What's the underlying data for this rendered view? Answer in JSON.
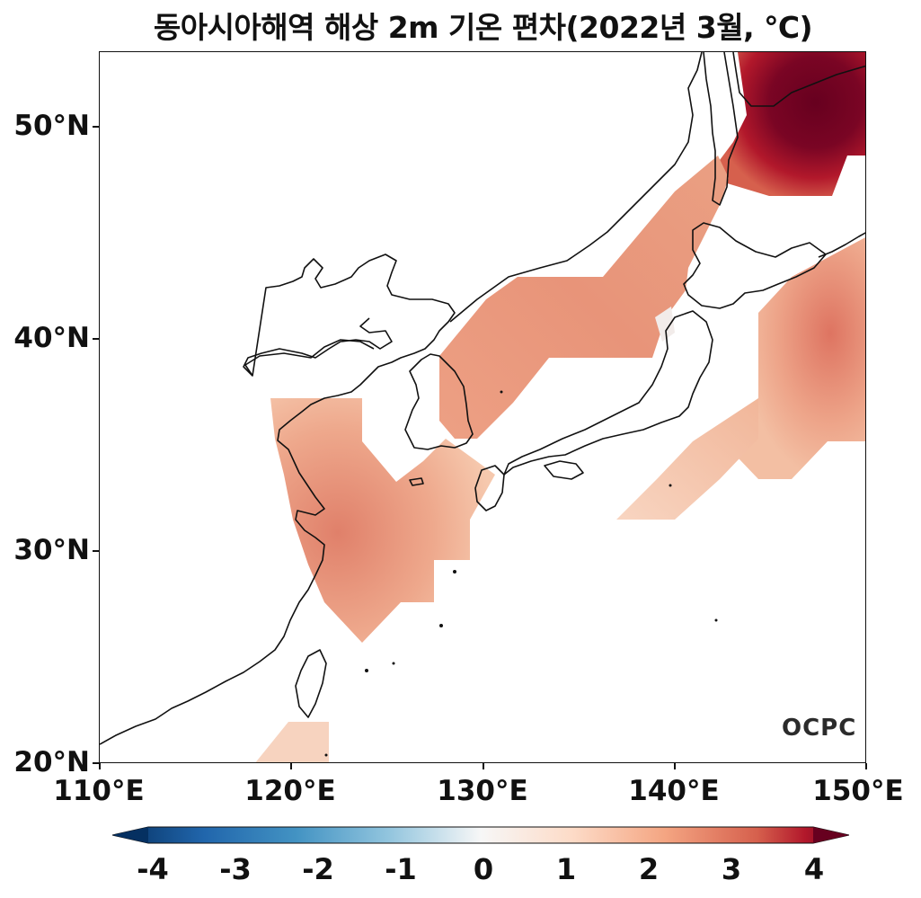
{
  "title": "동아시아해역 해상 2m 기온 편차(2022년 3월, ℃)",
  "y_ticks": [
    "50°N",
    "40°N",
    "30°N",
    "20°N"
  ],
  "x_ticks": [
    "110°E",
    "120°E",
    "130°E",
    "140°E",
    "150°E"
  ],
  "logo_text": "OCPC",
  "colorbar": {
    "labels": [
      "-4",
      "-3",
      "-2",
      "-1",
      "0",
      "1",
      "2",
      "3",
      "4"
    ],
    "colormap": "RdBu_r",
    "colors": [
      "#053061",
      "#2166ac",
      "#4393c3",
      "#92c5de",
      "#f7f7f7",
      "#fddbc7",
      "#f4a582",
      "#d6604d",
      "#b2182b",
      "#67001f"
    ]
  },
  "map": {
    "lon_range": [
      110,
      150
    ],
    "lat_range": [
      20,
      53.5
    ],
    "colors": {
      "anomaly_low": "#f6c9ae",
      "anomaly_mid": "#eca083",
      "anomaly_high": "#d9654f",
      "anomaly_max": "#6b0020",
      "coastline": "#111111"
    }
  }
}
